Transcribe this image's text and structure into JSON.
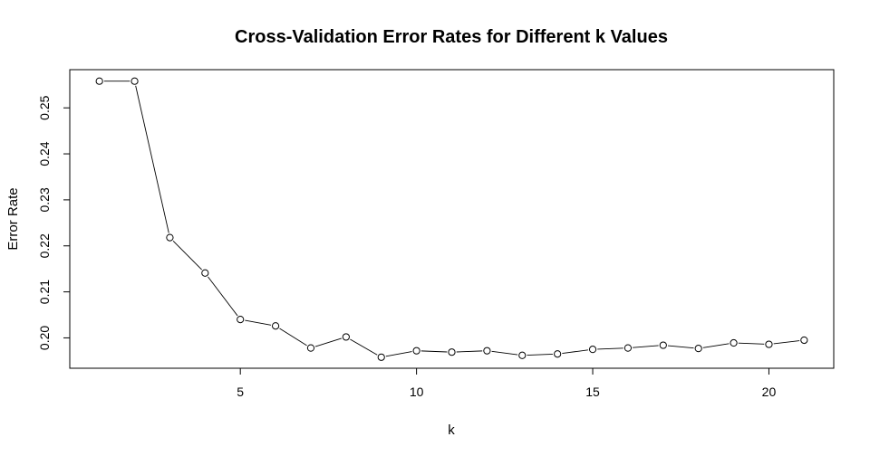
{
  "chart_data": {
    "type": "line",
    "title": "Cross-Validation Error Rates for Different k Values",
    "xlabel": "k",
    "ylabel": "Error Rate",
    "xlim": [
      0.16,
      21.84
    ],
    "ylim": [
      0.1934,
      0.2583
    ],
    "xticks": [
      5,
      10,
      15,
      20
    ],
    "xtick_labels": [
      "5",
      "10",
      "15",
      "20"
    ],
    "yticks": [
      0.2,
      0.21,
      0.22,
      0.23,
      0.24,
      0.25
    ],
    "ytick_labels": [
      "0.20",
      "0.21",
      "0.22",
      "0.23",
      "0.24",
      "0.25"
    ],
    "grid": false,
    "marker": "open-circle",
    "line_color": "#000000",
    "series": [
      {
        "x": [
          1,
          2,
          3,
          4,
          5,
          6,
          7,
          8,
          9,
          10,
          11,
          12,
          13,
          14,
          15,
          16,
          17,
          18,
          19,
          20,
          21
        ],
        "values": [
          0.2558,
          0.2558,
          0.2218,
          0.2141,
          0.204,
          0.2026,
          0.1978,
          0.2002,
          0.1958,
          0.1972,
          0.1969,
          0.1972,
          0.1962,
          0.1965,
          0.1975,
          0.1978,
          0.1984,
          0.1977,
          0.1989,
          0.1986,
          0.1995
        ]
      }
    ]
  }
}
